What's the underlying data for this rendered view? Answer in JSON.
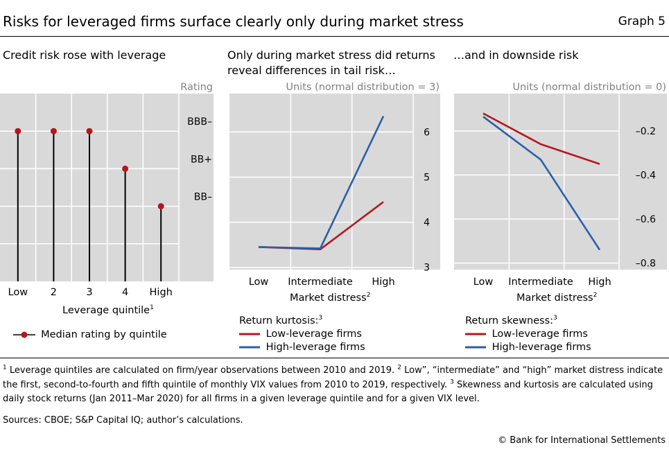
{
  "title": "Risks for leveraged firms surface clearly only during market stress",
  "graph_label": "Graph 5",
  "colors": {
    "red": "#b5171c",
    "blue": "#2a5fa8",
    "panel_bg": "#d9d9d9",
    "grid": "#ffffff"
  },
  "panel1": {
    "title": "Credit risk rose with leverage",
    "unit": "Rating",
    "xlabel": "Leverage quintile",
    "xlabel_sup": "1",
    "legend_label": "Median rating by quintile"
  },
  "panel2": {
    "title_line1": "Only during market stress did returns",
    "title_line2": "reveal differences in tail risk…",
    "unit": "Units (normal distribution = 3)",
    "xlabel": "Market distress",
    "xlabel_sup": "2",
    "legend_title": "Return kurtosis:",
    "legend_title_sup": "3"
  },
  "panel3": {
    "title": "…and in downside risk",
    "unit": "Units (normal distribution = 0)",
    "xlabel": "Market distress",
    "xlabel_sup": "2",
    "legend_title": "Return skewness:",
    "legend_title_sup": "3"
  },
  "chart_data": [
    {
      "type": "lollipop",
      "title": "Credit risk rose with leverage",
      "categories": [
        "Low",
        "2",
        "3",
        "4",
        "High"
      ],
      "y_tick_labels": [
        "BBB–",
        "BB+",
        "BB–"
      ],
      "y_tick_values": [
        2,
        1,
        0
      ],
      "values": [
        2,
        2,
        2,
        1,
        0
      ],
      "value_labels": [
        "BBB–",
        "BBB–",
        "BBB–",
        "BB+",
        "BB–"
      ],
      "ylim": [
        -2,
        3
      ],
      "series_name": "Median rating by quintile"
    },
    {
      "type": "line",
      "title": "Only during market stress did returns reveal differences in tail risk…",
      "categories": [
        "Low",
        "Intermediate",
        "High"
      ],
      "y_ticks": [
        3,
        4,
        5,
        6
      ],
      "ylim": [
        2.95,
        6.85
      ],
      "series": [
        {
          "name": "Low-leverage firms",
          "color": "#b5171c",
          "values": [
            3.45,
            3.4,
            4.45
          ]
        },
        {
          "name": "High-leverage firms",
          "color": "#2a5fa8",
          "values": [
            3.45,
            3.42,
            6.35
          ]
        }
      ]
    },
    {
      "type": "line",
      "title": "…and in downside risk",
      "categories": [
        "Low",
        "Intermediate",
        "High"
      ],
      "y_ticks": [
        -0.2,
        -0.4,
        -0.6,
        -0.8
      ],
      "ylim": [
        -0.83,
        -0.03
      ],
      "series": [
        {
          "name": "Low-leverage firms",
          "color": "#b5171c",
          "values": [
            -0.12,
            -0.26,
            -0.35
          ]
        },
        {
          "name": "High-leverage firms",
          "color": "#2a5fa8",
          "values": [
            -0.135,
            -0.33,
            -0.74
          ]
        }
      ]
    }
  ],
  "footnotes": {
    "n1": "1",
    "t1": " Leverage quintiles are calculated on firm/year observations between 2010 and 2019. ",
    "n2": "2",
    "t2": " Low”, “intermediate” and “high” market distress indicate the first, second-to-fourth and fifth quintile of monthly VIX values from 2010 to 2019, respectively. ",
    "n3": "3",
    "t3": " Skewness and kurtosis are calculated using daily stock returns (Jan 2011–Mar 2020) for all firms in a given leverage quintile and for a given VIX level."
  },
  "sources": "Sources: CBOE; S&P Capital IQ; author’s calculations.",
  "copyright": "© Bank for International Settlements"
}
